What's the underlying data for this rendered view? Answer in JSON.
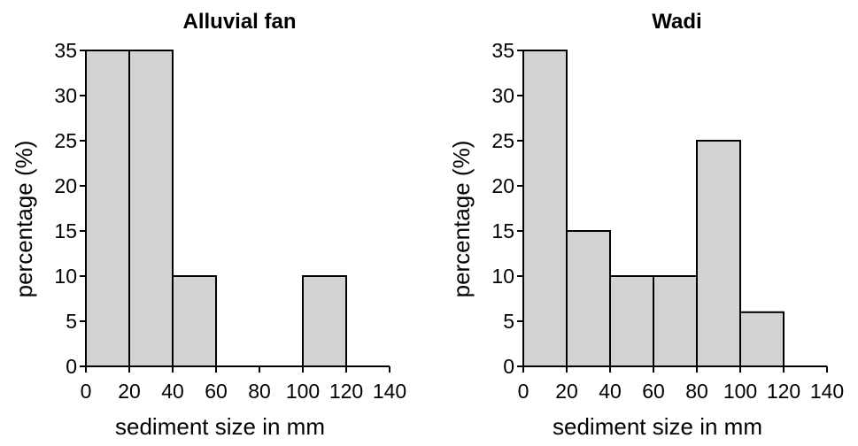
{
  "chart_data": [
    {
      "type": "bar",
      "title": "Alluvial fan",
      "xlabel": "sediment size in mm",
      "ylabel": "percentage (%)",
      "bin_edges": [
        0,
        20,
        40,
        60,
        80,
        100,
        120
      ],
      "values": [
        35,
        35,
        10,
        0,
        0,
        10
      ],
      "xlim": [
        0,
        140
      ],
      "ylim": [
        0,
        35
      ],
      "xticks": [
        0,
        20,
        40,
        60,
        80,
        100,
        120,
        140
      ],
      "yticks": [
        0,
        5,
        10,
        15,
        20,
        25,
        30,
        35
      ],
      "grid": false,
      "bar_color": "#d3d3d3"
    },
    {
      "type": "bar",
      "title": "Wadi",
      "xlabel": "sediment size in mm",
      "ylabel": "percentage (%)",
      "bin_edges": [
        0,
        20,
        40,
        60,
        80,
        100,
        120
      ],
      "values": [
        35,
        15,
        10,
        10,
        25,
        6
      ],
      "xlim": [
        0,
        140
      ],
      "ylim": [
        0,
        35
      ],
      "xticks": [
        0,
        20,
        40,
        60,
        80,
        100,
        120,
        140
      ],
      "yticks": [
        0,
        5,
        10,
        15,
        20,
        25,
        30,
        35
      ],
      "grid": false,
      "bar_color": "#d3d3d3"
    }
  ]
}
